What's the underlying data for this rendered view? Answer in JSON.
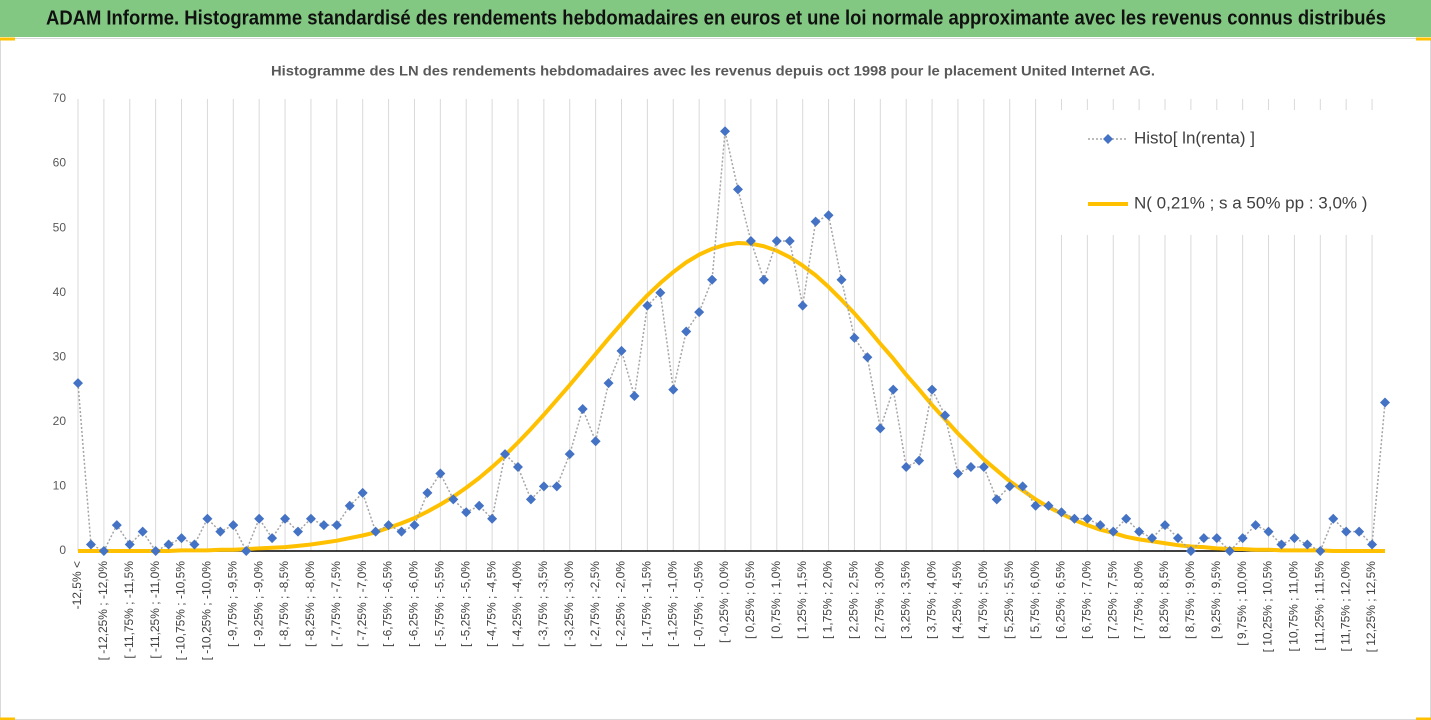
{
  "header": {
    "title": "ADAM Informe. Histogramme standardisé des rendements hebdomadaires en euros et une loi normale approximante avec les revenus connus distribués"
  },
  "chart_data": {
    "type": "line",
    "title": "Histogramme  des LN des rendements hebdomadaires avec les revenus depuis oct 1998 pour le placement United Internet AG.",
    "categories": [
      "-12,5% <",
      null,
      "[ -12,25% ; -12,0%",
      null,
      "[ -11,75% ; -11,5%",
      null,
      "[ -11,25% ; -11,0%",
      null,
      "[ -10,75% ; -10,5%",
      null,
      "[ -10,25% ; -10,0%",
      null,
      "[ -9,75% ; -9,5%",
      null,
      "[ -9,25% ; -9,0%",
      null,
      "[ -8,75% ; -8,5%",
      null,
      "[ -8,25% ; -8,0%",
      null,
      "[ -7,75% ; -7,5%",
      null,
      "[ -7,25% ; -7,0%",
      null,
      "[ -6,75% ; -6,5%",
      null,
      "[ -6,25% ; -6,0%",
      null,
      "[ -5,75% ; -5,5%",
      null,
      "[ -5,25% ; -5,0%",
      null,
      "[ -4,75% ; -4,5%",
      null,
      "[ -4,25% ; -4,0%",
      null,
      "[ -3,75% ; -3,5%",
      null,
      "[ -3,25% ; -3,0%",
      null,
      "[ -2,75% ; -2,5%",
      null,
      "[ -2,25% ; -2,0%",
      null,
      "[ -1,75% ; -1,5%",
      null,
      "[ -1,25% ; -1,0%",
      null,
      "[ -0,75% ; -0,5%",
      null,
      "[ -0,25% ; 0,0%",
      null,
      "[ 0,25% ; 0,5%",
      null,
      "[ 0,75% ; 1,0%",
      null,
      "[ 1,25% ; 1,5%",
      null,
      "[ 1,75% ; 2,0%",
      null,
      "[ 2,25% ; 2,5%",
      null,
      "[ 2,75% ; 3,0%",
      null,
      "[ 3,25% ; 3,5%",
      null,
      "[ 3,75% ; 4,0%",
      null,
      "[ 4,25% ; 4,5%",
      null,
      "[ 4,75% ; 5,0%",
      null,
      "[ 5,25% ; 5,5%",
      null,
      "[ 5,75% ; 6,0%",
      null,
      "[ 6,25% ; 6,5%",
      null,
      "[ 6,75% ; 7,0%",
      null,
      "[ 7,25% ; 7,5%",
      null,
      "[ 7,75% ; 8,0%",
      null,
      "[ 8,25% ; 8,5%",
      null,
      "[ 8,75% ; 9,0%",
      null,
      "[ 9,25% ; 9,5%",
      null,
      "[ 9,75% ; 10,0%",
      null,
      "[ 10,25% ; 10,5%",
      null,
      "[ 10,75% ; 11,0%",
      null,
      "[ 11,25% ; 11,5%",
      null,
      "[ 11,75% ; 12,0%",
      null,
      "[ 12,25% ; 12,5%",
      null
    ],
    "series": [
      {
        "name": "Histo[ ln(renta) ]",
        "color": "#4472c4",
        "line_color": "#a5a5a5",
        "marker": "diamond",
        "values": [
          26,
          1,
          0,
          4,
          1,
          3,
          0,
          1,
          2,
          1,
          5,
          3,
          4,
          0,
          5,
          2,
          5,
          3,
          5,
          4,
          4,
          7,
          9,
          3,
          4,
          3,
          4,
          9,
          12,
          8,
          6,
          7,
          5,
          15,
          13,
          8,
          10,
          10,
          15,
          22,
          17,
          26,
          31,
          24,
          38,
          40,
          25,
          34,
          37,
          42,
          65,
          56,
          48,
          42,
          48,
          48,
          38,
          51,
          52,
          42,
          33,
          30,
          19,
          25,
          13,
          14,
          25,
          21,
          12,
          13,
          13,
          8,
          10,
          10,
          7,
          7,
          6,
          5,
          5,
          4,
          3,
          5,
          3,
          2,
          4,
          2,
          0,
          2,
          2,
          0,
          2,
          4,
          3,
          1,
          2,
          1,
          0,
          5,
          3,
          3,
          1,
          23
        ]
      },
      {
        "name": "N( 0,21% ; s a 50% pp : 3,0% )",
        "color": "#ffc000",
        "values": [
          0,
          0,
          0,
          0,
          0,
          0,
          0,
          0,
          0.1,
          0.1,
          0.1,
          0.2,
          0.2,
          0.3,
          0.4,
          0.5,
          0.6,
          0.8,
          1.0,
          1.3,
          1.6,
          2.0,
          2.4,
          2.9,
          3.6,
          4.3,
          5.1,
          6.1,
          7.2,
          8.4,
          9.8,
          11.3,
          13.0,
          14.8,
          16.8,
          18.9,
          21.1,
          23.4,
          25.7,
          28.1,
          30.5,
          32.9,
          35.2,
          37.5,
          39.6,
          41.5,
          43.2,
          44.7,
          45.9,
          46.8,
          47.4,
          47.7,
          47.6,
          47.2,
          46.5,
          45.5,
          44.2,
          42.7,
          40.9,
          38.9,
          36.8,
          34.5,
          32.1,
          29.8,
          27.3,
          25.0,
          22.6,
          20.4,
          18.2,
          16.2,
          14.2,
          12.5,
          10.8,
          9.4,
          8.0,
          6.8,
          5.8,
          4.8,
          4.0,
          3.3,
          2.8,
          2.2,
          1.8,
          1.5,
          1.2,
          0.9,
          0.7,
          0.6,
          0.4,
          0.3,
          0.3,
          0.2,
          0.2,
          0.1,
          0.1,
          0.1,
          0.1,
          0,
          0,
          0,
          0,
          0
        ]
      }
    ],
    "ylim": [
      0,
      70
    ],
    "yticks": [
      0,
      10,
      20,
      30,
      40,
      50,
      60,
      70
    ],
    "grid": true,
    "legend": "top-right"
  }
}
